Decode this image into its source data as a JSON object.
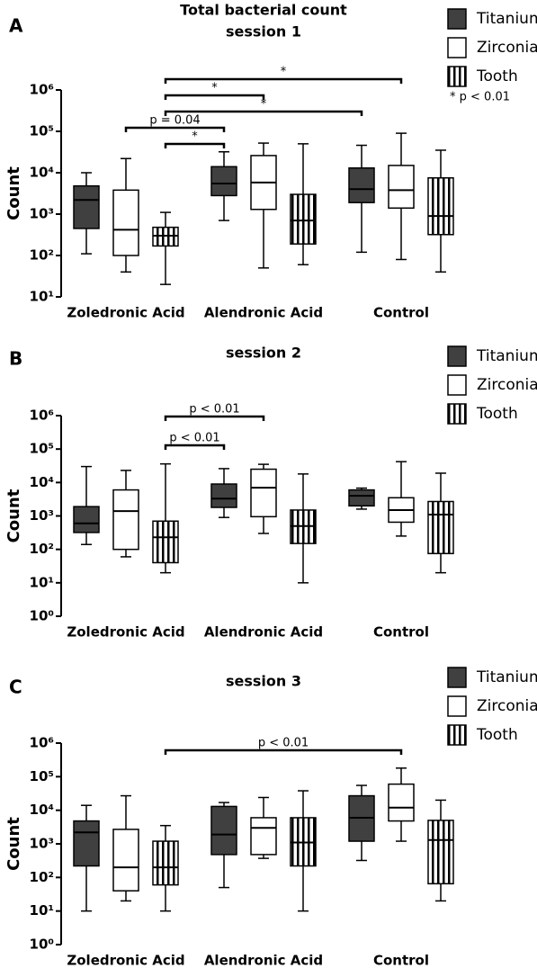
{
  "chart_data": [
    {
      "type": "box",
      "panel": "A",
      "title": "Total bacterial count",
      "subtitle": "session 1",
      "ylabel": "Count",
      "log_scale": true,
      "ylim": [
        10,
        1000000
      ],
      "yticks": [
        {
          "value": 10,
          "label": "10¹"
        },
        {
          "value": 100,
          "label": "10²"
        },
        {
          "value": 1000,
          "label": "10³"
        },
        {
          "value": 10000,
          "label": "10⁴"
        },
        {
          "value": 100000,
          "label": "10⁵"
        },
        {
          "value": 1000000,
          "label": "10⁶"
        }
      ],
      "categories": [
        "Zoledronic Acid",
        "Alendronic Acid",
        "Control"
      ],
      "series": [
        {
          "name": "Titanium",
          "color": "#404040",
          "values": [
            [
              110,
              450,
              2200,
              4800,
              10000
            ],
            [
              700,
              2800,
              5500,
              14000,
              32000
            ],
            [
              120,
              1900,
              4000,
              13000,
              46000
            ]
          ]
        },
        {
          "name": "Zirconia",
          "color": "#ffffff",
          "values": [
            [
              40,
              100,
              420,
              3800,
              22000
            ],
            [
              50,
              1300,
              5800,
              26000,
              52000
            ],
            [
              80,
              1400,
              3800,
              15000,
              90000
            ]
          ]
        },
        {
          "name": "Tooth",
          "color": "#000000",
          "pattern": "vertical-stripes",
          "values": [
            [
              20,
              170,
              300,
              480,
              1100
            ],
            [
              60,
              190,
              700,
              3000,
              50000
            ],
            [
              40,
              320,
              900,
              7500,
              35000
            ]
          ]
        }
      ],
      "brackets": [
        {
          "label": "*",
          "from": {
            "category": 0,
            "series": 2
          },
          "to": {
            "category": 2,
            "series": 1
          }
        },
        {
          "label": "*",
          "from": {
            "category": 0,
            "series": 2
          },
          "to": {
            "category": 1,
            "series": 1
          }
        },
        {
          "label": "*",
          "from": {
            "category": 0,
            "series": 2
          },
          "to": {
            "category": 2,
            "series": 0
          }
        },
        {
          "label": "p = 0.04",
          "from": {
            "category": 0,
            "series": 1
          },
          "to": {
            "category": 1,
            "series": 0
          }
        },
        {
          "label": "*",
          "from": {
            "category": 0,
            "series": 2
          },
          "to": {
            "category": 1,
            "series": 0
          }
        }
      ],
      "note": "* p < 0.01"
    },
    {
      "type": "box",
      "panel": "B",
      "title": "session 2",
      "ylabel": "Count",
      "log_scale": true,
      "ylim": [
        1,
        1000000
      ],
      "yticks": [
        {
          "value": 1,
          "label": "10⁰"
        },
        {
          "value": 10,
          "label": "10¹"
        },
        {
          "value": 100,
          "label": "10²"
        },
        {
          "value": 1000,
          "label": "10³"
        },
        {
          "value": 10000,
          "label": "10⁴"
        },
        {
          "value": 100000,
          "label": "10⁵"
        },
        {
          "value": 1000000,
          "label": "10⁶"
        }
      ],
      "categories": [
        "Zoledronic Acid",
        "Alendronic Acid",
        "Control"
      ],
      "series": [
        {
          "name": "Titanium",
          "color": "#404040",
          "values": [
            [
              140,
              320,
              600,
              1900,
              30000
            ],
            [
              900,
              1800,
              3300,
              9000,
              26000
            ],
            [
              1600,
              2000,
              4000,
              6000,
              6800
            ]
          ]
        },
        {
          "name": "Zirconia",
          "color": "#ffffff",
          "values": [
            [
              60,
              100,
              1400,
              6000,
              23000
            ],
            [
              300,
              950,
              7000,
              25000,
              35000
            ],
            [
              250,
              650,
              1500,
              3500,
              42000
            ]
          ]
        },
        {
          "name": "Tooth",
          "color": "#000000",
          "pattern": "vertical-stripes",
          "values": [
            [
              20,
              40,
              230,
              700,
              36000
            ],
            [
              10,
              150,
              500,
              1500,
              18000
            ],
            [
              20,
              75,
              1100,
              2700,
              19000
            ]
          ]
        }
      ],
      "brackets": [
        {
          "label": "p < 0.01",
          "from": {
            "category": 0,
            "series": 2
          },
          "to": {
            "category": 1,
            "series": 1
          }
        },
        {
          "label": "p < 0.01",
          "from": {
            "category": 0,
            "series": 2
          },
          "to": {
            "category": 1,
            "series": 0
          }
        }
      ]
    },
    {
      "type": "box",
      "panel": "C",
      "title": "session 3",
      "ylabel": "Count",
      "log_scale": true,
      "ylim": [
        1,
        1000000
      ],
      "yticks": [
        {
          "value": 1,
          "label": "10⁰"
        },
        {
          "value": 10,
          "label": "10¹"
        },
        {
          "value": 100,
          "label": "10²"
        },
        {
          "value": 1000,
          "label": "10³"
        },
        {
          "value": 10000,
          "label": "10⁴"
        },
        {
          "value": 100000,
          "label": "10⁵"
        },
        {
          "value": 1000000,
          "label": "10⁶"
        }
      ],
      "categories": [
        "Zoledronic Acid",
        "Alendronic Acid",
        "Control"
      ],
      "series": [
        {
          "name": "Titanium",
          "color": "#404040",
          "values": [
            [
              10,
              220,
              2200,
              4800,
              14000
            ],
            [
              50,
              480,
              1900,
              13000,
              17000
            ],
            [
              320,
              1200,
              6000,
              27000,
              55000
            ]
          ]
        },
        {
          "name": "Zirconia",
          "color": "#ffffff",
          "values": [
            [
              20,
              40,
              200,
              2700,
              27000
            ],
            [
              370,
              480,
              3000,
              6000,
              24000
            ],
            [
              1200,
              4800,
              12000,
              60000,
              180000
            ]
          ]
        },
        {
          "name": "Tooth",
          "color": "#000000",
          "pattern": "vertical-stripes",
          "values": [
            [
              10,
              60,
              200,
              1200,
              3500
            ],
            [
              10,
              220,
              1100,
              6000,
              38000
            ],
            [
              20,
              65,
              1300,
              5000,
              20000
            ]
          ]
        }
      ],
      "brackets": [
        {
          "label": "p < 0.01",
          "from": {
            "category": 0,
            "series": 2
          },
          "to": {
            "category": 2,
            "series": 1
          }
        }
      ]
    }
  ]
}
